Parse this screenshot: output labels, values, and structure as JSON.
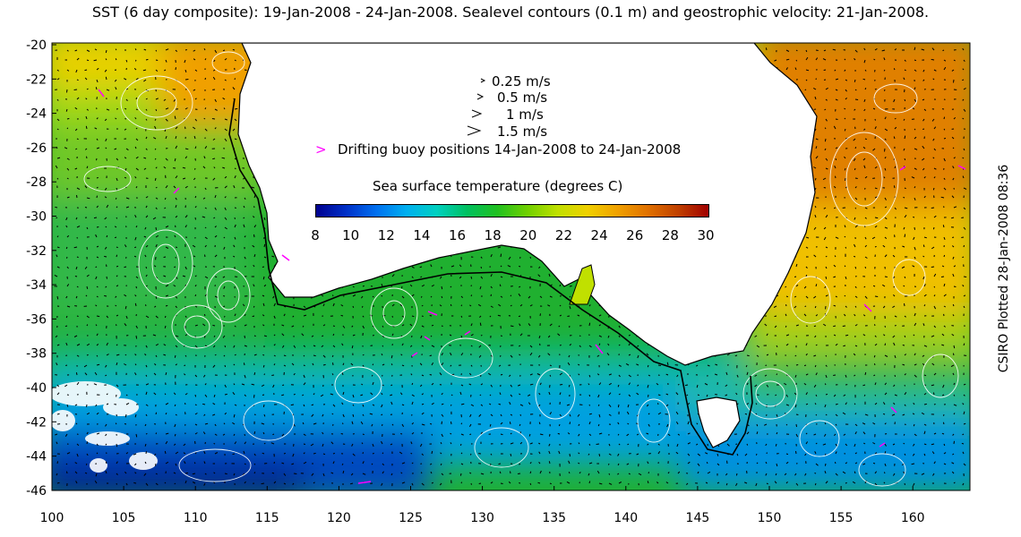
{
  "title": "SST (6 day composite): 19-Jan-2008 - 24-Jan-2008. Sealevel contours (0.1 m) and geostrophic velocity: 21-Jan-2008.",
  "credit": "CSIRO Plotted 28-Jan-2008 08:36",
  "legend": {
    "arrows": [
      {
        "label": "0.25 m/s"
      },
      {
        "label": "0.5 m/s"
      },
      {
        "label": "1 m/s"
      },
      {
        "label": "1.5 m/s"
      }
    ],
    "buoy_label": "Drifting buoy positions 14-Jan-2008 to 24-Jan-2008",
    "buoy_color": "#ff00ff"
  },
  "colorbar": {
    "label": "Sea surface temperature (degrees C)",
    "ticks": [
      "8",
      "10",
      "12",
      "14",
      "16",
      "18",
      "20",
      "22",
      "24",
      "26",
      "28",
      "30"
    ],
    "colors": [
      "#00008f",
      "#0030c8",
      "#0070f0",
      "#00b0f0",
      "#00d0c0",
      "#00c060",
      "#20c020",
      "#70d000",
      "#c0e000",
      "#f0d000",
      "#f0a000",
      "#e07000",
      "#c04000",
      "#a00000"
    ]
  },
  "axes": {
    "x_ticks": [
      "100",
      "105",
      "110",
      "115",
      "120",
      "125",
      "130",
      "135",
      "140",
      "145",
      "150",
      "155",
      "160"
    ],
    "y_ticks": [
      "-20",
      "-22",
      "-24",
      "-26",
      "-28",
      "-30",
      "-32",
      "-34",
      "-36",
      "-38",
      "-40",
      "-42",
      "-44",
      "-46"
    ]
  }
}
